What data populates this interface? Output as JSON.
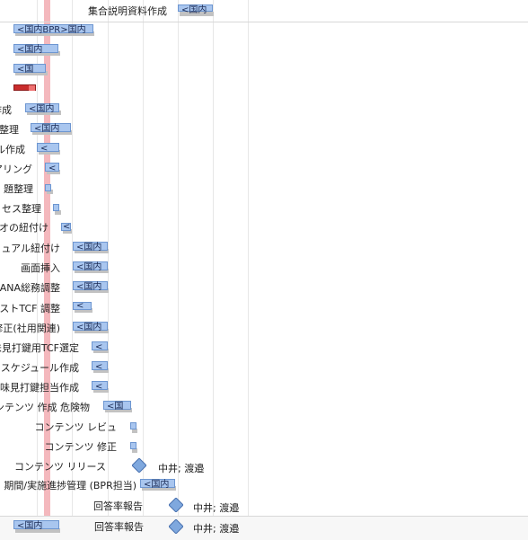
{
  "rows": [
    {
      "label": "集合説明資料作成",
      "bar_text": "<国内",
      "type": "task"
    },
    {
      "label": "",
      "bar_text": "<国内BPR>国内",
      "type": "task"
    },
    {
      "label": "",
      "bar_text": "<国内",
      "type": "task"
    },
    {
      "label": "",
      "bar_text": "<国",
      "type": "task"
    },
    {
      "label": "",
      "bar_text": "",
      "type": "critical"
    },
    {
      "label": "作成",
      "bar_text": "<国内",
      "type": "task"
    },
    {
      "label": "整理",
      "bar_text": "<国内",
      "type": "task"
    },
    {
      "label": "ル作成",
      "bar_text": "<",
      "type": "task"
    },
    {
      "label": "アリング",
      "bar_text": "<",
      "type": "task"
    },
    {
      "label": "題整理",
      "bar_text": "",
      "type": "task"
    },
    {
      "label": "セス整理",
      "bar_text": "",
      "type": "task"
    },
    {
      "label": "オの紐付け",
      "bar_text": "<",
      "type": "task"
    },
    {
      "label": "ュアル紐付け",
      "bar_text": "<国内",
      "type": "task"
    },
    {
      "label": "画面挿入",
      "bar_text": "<国内",
      "type": "task"
    },
    {
      "label": "ANA総務調整",
      "bar_text": "<国内",
      "type": "task"
    },
    {
      "label": "ストTCF 調整",
      "bar_text": "<",
      "type": "task"
    },
    {
      "label": "修正(社用関連)",
      "bar_text": "<国内",
      "type": "task"
    },
    {
      "label": "味見打鍵用TCF選定",
      "bar_text": "<",
      "type": "task"
    },
    {
      "label": "スケジュール作成",
      "bar_text": "<",
      "type": "task"
    },
    {
      "label": "味見打鍵担当作成",
      "bar_text": "<",
      "type": "task"
    },
    {
      "label": "ンテンツ 作成 危険物",
      "bar_text": "<国",
      "type": "task"
    },
    {
      "label": "コンテンツ レビュ",
      "bar_text": "",
      "type": "task"
    },
    {
      "label": "コンテンツ 修正",
      "bar_text": "",
      "type": "task"
    },
    {
      "label": "コンテンツ リリース",
      "bar_text": "",
      "type": "milestone",
      "resource": "中井; 渡邉"
    },
    {
      "label": "期間/実施進捗管理 (BPR担当)",
      "bar_text": "<国内",
      "type": "task"
    },
    {
      "label": "回答率報告",
      "bar_text": "",
      "type": "milestone",
      "resource": "中井; 渡邉"
    },
    {
      "label": "回答率報告",
      "bar_text": "<国内",
      "type": "mixed",
      "resource": "中井; 渡邉"
    }
  ],
  "colors": {
    "bar": "#a9c6ef",
    "bar_border": "#6d96d1",
    "today": "#f4b8bd",
    "critical": "#c92c2c",
    "milestone": "#7fa8de"
  }
}
